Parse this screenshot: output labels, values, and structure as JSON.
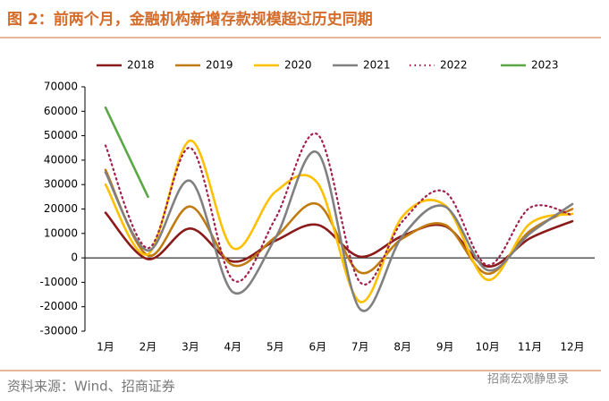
{
  "chart_data": {
    "type": "line",
    "title": "图 2：前两个月，金融机构新增存款规模超过历史同期",
    "source": "资料来源：Wind、招商证券",
    "watermark": "招商宏观静思录",
    "categories": [
      "1月",
      "2月",
      "3月",
      "4月",
      "5月",
      "6月",
      "7月",
      "8月",
      "9月",
      "10月",
      "11月",
      "12月"
    ],
    "series": [
      {
        "name": "2018",
        "color": "#8b1a1a",
        "style": "solid",
        "values": [
          18500,
          -500,
          12000,
          -1500,
          7000,
          13500,
          500,
          9000,
          13000,
          -3500,
          8000,
          15000
        ]
      },
      {
        "name": "2019",
        "color": "#c07a10",
        "style": "solid",
        "values": [
          36000,
          1000,
          21000,
          -3000,
          8500,
          22000,
          -6000,
          8000,
          13500,
          -6500,
          11000,
          20000
        ]
      },
      {
        "name": "2020",
        "color": "#ffc000",
        "style": "solid",
        "values": [
          30000,
          1500,
          48000,
          4000,
          27000,
          30500,
          -18000,
          17000,
          21500,
          -9000,
          14000,
          18000
        ]
      },
      {
        "name": "2021",
        "color": "#808080",
        "style": "solid",
        "values": [
          35000,
          3000,
          31500,
          -14000,
          8000,
          43000,
          -21000,
          9000,
          21000,
          -5000,
          10000,
          22000
        ]
      },
      {
        "name": "2022",
        "color": "#a0204a",
        "style": "dotted",
        "values": [
          46000,
          4000,
          45000,
          -9000,
          16000,
          50500,
          -10000,
          15000,
          27000,
          -3000,
          20500,
          17500
        ]
      },
      {
        "name": "2023",
        "color": "#5aa845",
        "style": "solid",
        "values": [
          61500,
          25000,
          null,
          null,
          null,
          null,
          null,
          null,
          null,
          null,
          null,
          null
        ]
      }
    ],
    "ylim": [
      -30000,
      70000
    ],
    "yticks": [
      -30000,
      -20000,
      -10000,
      0,
      10000,
      20000,
      30000,
      40000,
      50000,
      60000,
      70000
    ],
    "legend": "top"
  }
}
